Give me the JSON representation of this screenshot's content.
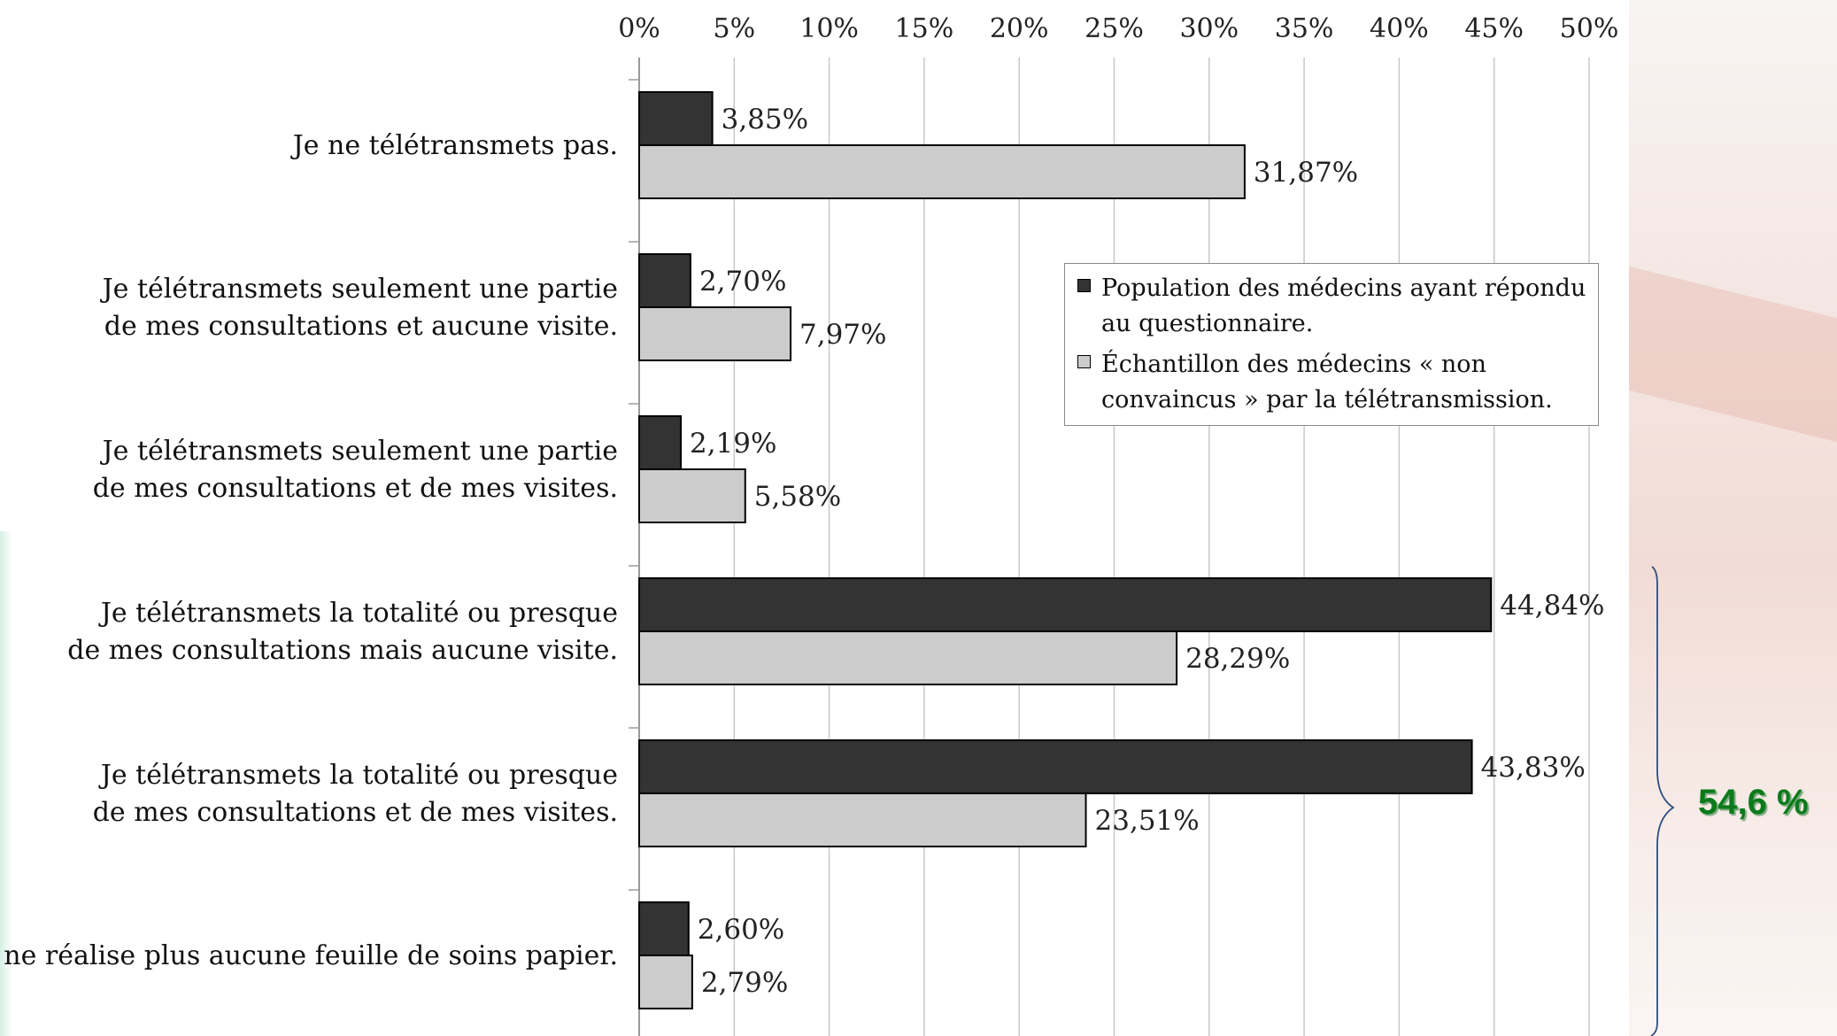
{
  "chart_data": {
    "type": "bar",
    "orientation": "horizontal",
    "categories": [
      [
        "Je ne télétransmets pas."
      ],
      [
        "Je télétransmets seulement une partie",
        "de mes consultations et aucune visite."
      ],
      [
        "Je télétransmets seulement une partie",
        "de mes consultations et de mes visites."
      ],
      [
        "Je télétransmets la totalité ou presque",
        "de mes consultations mais aucune visite."
      ],
      [
        "Je télétransmets la totalité ou presque",
        "de mes consultations et de mes visites."
      ],
      [
        "Je ne réalise plus aucune feuille de soins papier."
      ]
    ],
    "series": [
      {
        "name": "Population des médecins ayant répondu au questionnaire.",
        "color": "#333333",
        "values": [
          3.85,
          2.7,
          2.19,
          44.84,
          43.83,
          2.6
        ],
        "labels": [
          "3,85%",
          "2,70%",
          "2,19%",
          "44,84%",
          "43,83%",
          "2,60%"
        ]
      },
      {
        "name": "Échantillon des médecins « non convaincus » par la télétransmission.",
        "color": "#cccccc",
        "values": [
          31.87,
          7.97,
          5.58,
          28.29,
          23.51,
          2.79
        ],
        "labels": [
          "31,87%",
          "7,97%",
          "5,58%",
          "28,29%",
          "23,51%",
          "2,79%"
        ]
      }
    ],
    "xlim": [
      0,
      50
    ],
    "xticks": [
      "0%",
      "5%",
      "10%",
      "15%",
      "20%",
      "25%",
      "30%",
      "35%",
      "40%",
      "45%",
      "50%"
    ],
    "grid": true,
    "legend_position": "right"
  },
  "annotation": {
    "total_label": "54,6 %",
    "brace_color": "#2e4e7e"
  }
}
